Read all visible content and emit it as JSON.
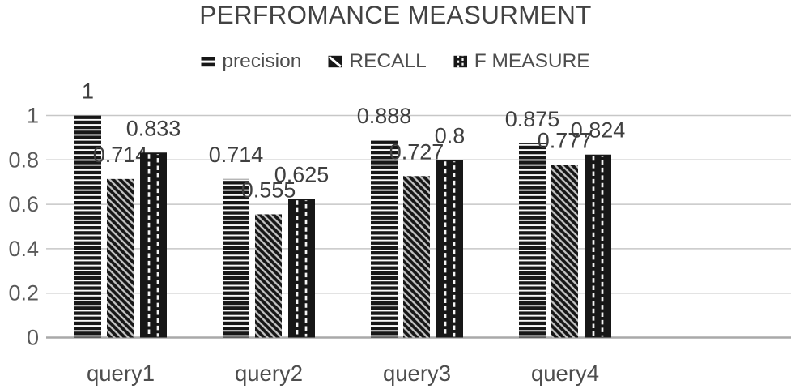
{
  "chart_data": {
    "type": "bar",
    "title": "PERFROMANCE MEASURMENT",
    "categories": [
      "query1",
      "query2",
      "query3",
      "query4"
    ],
    "series": [
      {
        "name": "precision",
        "pattern": "horizontal-stripes",
        "values": [
          1,
          0.714,
          0.888,
          0.875
        ],
        "labels": [
          "1",
          "0.714",
          "0.888",
          "0.875"
        ]
      },
      {
        "name": "RECALL",
        "pattern": "diagonal-stripes",
        "values": [
          0.714,
          0.555,
          0.727,
          0.777
        ],
        "labels": [
          "0.714",
          "0.555",
          "0.727",
          "0.777"
        ]
      },
      {
        "name": "F MEASURE",
        "pattern": "dashed-vertical-lines",
        "values": [
          0.833,
          0.625,
          0.8,
          0.824
        ],
        "labels": [
          "0.833",
          "0.625",
          "0.8",
          "0.824"
        ]
      }
    ],
    "y_ticks": [
      "1",
      "0.8",
      "0.6",
      "0.4",
      "0.2",
      "0"
    ],
    "ylim": [
      0,
      1
    ],
    "grid": true,
    "legend_position": "top",
    "colors": {
      "bar": "#171717",
      "grid": "#c7c7c7",
      "axis": "#a9a9a9",
      "tick_label": "#595959",
      "category_label": "#4d4d4d",
      "value_label": "#3f3f3f",
      "diagonal_stripe": "#c4c4c4",
      "stripe_gap": "#fafafa",
      "dash": "#f5f5f5"
    }
  }
}
